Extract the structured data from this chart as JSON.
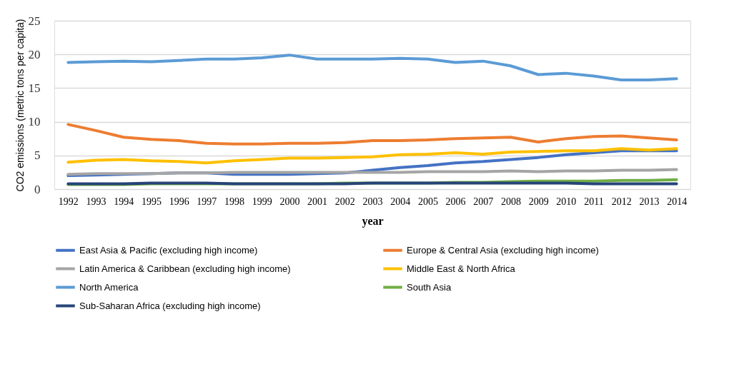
{
  "chart_data": {
    "type": "line",
    "xlabel": "year",
    "ylabel": "CO2 emissions (metric tons per capita)",
    "categories": [
      "1992",
      "1993",
      "1994",
      "1995",
      "1996",
      "1997",
      "1998",
      "1999",
      "2000",
      "2001",
      "2002",
      "2003",
      "2004",
      "2005",
      "2006",
      "2007",
      "2008",
      "2009",
      "2010",
      "2011",
      "2012",
      "2013",
      "2014"
    ],
    "ylim": [
      0,
      25
    ],
    "yticks": [
      0,
      5,
      10,
      15,
      20,
      25
    ],
    "grid": "y",
    "legend": "bottom",
    "line_style": "solid",
    "marker": "none",
    "series": [
      {
        "name": "East Asia & Pacific (excluding high income)",
        "color": "#4472c4",
        "values": [
          2.0,
          2.1,
          2.2,
          2.3,
          2.4,
          2.4,
          2.2,
          2.2,
          2.2,
          2.3,
          2.4,
          2.8,
          3.2,
          3.5,
          3.9,
          4.1,
          4.4,
          4.7,
          5.1,
          5.4,
          5.7,
          5.7,
          5.7
        ]
      },
      {
        "name": "Europe & Central Asia (excluding high income)",
        "color": "#ed7d31",
        "values": [
          9.6,
          8.7,
          7.7,
          7.4,
          7.2,
          6.8,
          6.7,
          6.7,
          6.8,
          6.8,
          6.9,
          7.2,
          7.2,
          7.3,
          7.5,
          7.6,
          7.7,
          7.0,
          7.5,
          7.8,
          7.9,
          7.6,
          7.3
        ]
      },
      {
        "name": "Latin America & Caribbean (excluding high income)",
        "color": "#a5a5a5",
        "values": [
          2.2,
          2.3,
          2.3,
          2.3,
          2.4,
          2.4,
          2.5,
          2.5,
          2.5,
          2.5,
          2.5,
          2.5,
          2.5,
          2.6,
          2.6,
          2.6,
          2.7,
          2.6,
          2.7,
          2.7,
          2.8,
          2.8,
          2.9
        ]
      },
      {
        "name": "Middle East & North Africa",
        "color": "#ffc000",
        "values": [
          4.0,
          4.3,
          4.4,
          4.2,
          4.1,
          3.9,
          4.2,
          4.4,
          4.6,
          4.6,
          4.7,
          4.8,
          5.1,
          5.2,
          5.4,
          5.2,
          5.5,
          5.6,
          5.7,
          5.7,
          6.0,
          5.8,
          6.0
        ]
      },
      {
        "name": "North America",
        "color": "#5b9bd5",
        "values": [
          18.8,
          18.9,
          19.0,
          18.9,
          19.1,
          19.3,
          19.3,
          19.5,
          19.9,
          19.3,
          19.3,
          19.3,
          19.4,
          19.3,
          18.8,
          19.0,
          18.3,
          17.0,
          17.2,
          16.8,
          16.2,
          16.2,
          16.4
        ]
      },
      {
        "name": "South Asia",
        "color": "#70ad47",
        "values": [
          0.7,
          0.7,
          0.7,
          0.8,
          0.8,
          0.8,
          0.8,
          0.8,
          0.8,
          0.8,
          0.9,
          0.9,
          0.9,
          0.9,
          1.0,
          1.0,
          1.1,
          1.2,
          1.2,
          1.2,
          1.3,
          1.3,
          1.4
        ]
      },
      {
        "name": "Sub-Saharan Africa (excluding high income)",
        "color": "#264478",
        "values": [
          0.8,
          0.8,
          0.8,
          0.9,
          0.9,
          0.9,
          0.8,
          0.8,
          0.8,
          0.8,
          0.8,
          0.9,
          0.9,
          0.9,
          0.9,
          0.9,
          0.9,
          0.9,
          0.9,
          0.8,
          0.8,
          0.8,
          0.8
        ]
      }
    ]
  }
}
